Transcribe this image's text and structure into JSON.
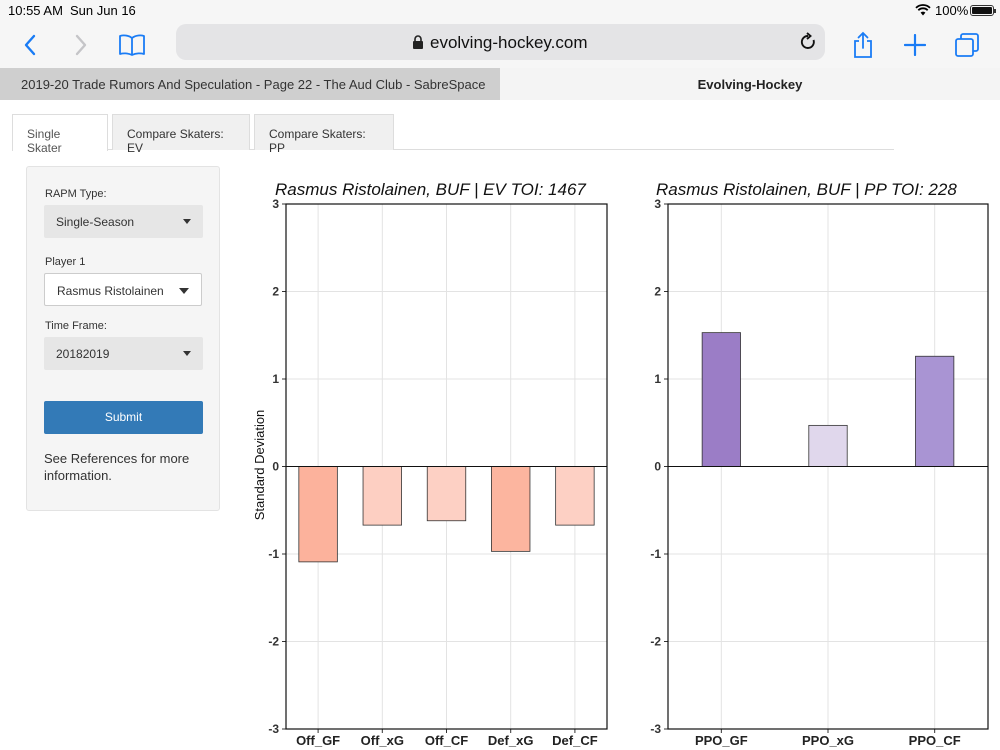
{
  "status_bar": {
    "time": "10:55 AM",
    "date": "Sun Jun 16",
    "battery": "100%"
  },
  "browser": {
    "url": "evolving-hockey.com",
    "tabs": [
      {
        "label": "2019-20 Trade Rumors And Speculation - Page 22 - The Aud Club - SabreSpace",
        "active": false
      },
      {
        "label": "Evolving-Hockey",
        "active": true
      }
    ]
  },
  "page_tabs": [
    {
      "label": "Single Skater",
      "active": true
    },
    {
      "label": "Compare Skaters: EV",
      "active": false
    },
    {
      "label": "Compare Skaters: PP",
      "active": false
    }
  ],
  "sidebar": {
    "rapm_label": "RAPM Type:",
    "rapm_value": "Single-Season",
    "player_label": "Player 1",
    "player_value": "Rasmus Ristolainen",
    "timeframe_label": "Time Frame:",
    "timeframe_value": "20182019",
    "submit_label": "Submit",
    "note": "See References for more information."
  },
  "colors": {
    "accent": "#337ab7",
    "ev_bars": [
      "#fcb29c",
      "#fdcfc2",
      "#fdd0c4",
      "#fcb59f",
      "#fdd0c4"
    ],
    "pp_bars": [
      "#9b7dc6",
      "#e0d7ec",
      "#a994d3"
    ]
  },
  "chart_data": [
    {
      "type": "bar",
      "title": "Rasmus Ristolainen, BUF  |  EV TOI: 1467",
      "categories": [
        "Off_GF",
        "Off_xG",
        "Off_CF",
        "Def_xG",
        "Def_CF"
      ],
      "values": [
        -1.09,
        -0.67,
        -0.62,
        -0.97,
        -0.67
      ],
      "ylabel": "Standard Deviation",
      "ylim": [
        -3,
        3
      ],
      "yticks": [
        "3",
        "2",
        "1",
        "0",
        "-1",
        "-2",
        "-3"
      ],
      "grid": true
    },
    {
      "type": "bar",
      "title": "Rasmus Ristolainen, BUF  |  PP TOI: 228",
      "categories": [
        "PPO_GF",
        "PPO_xG",
        "PPO_CF"
      ],
      "values": [
        1.53,
        0.47,
        1.26
      ],
      "ylim": [
        -3,
        3
      ],
      "yticks": [
        "3",
        "2",
        "1",
        "0",
        "-1",
        "-2",
        "-3"
      ],
      "grid": true
    }
  ]
}
